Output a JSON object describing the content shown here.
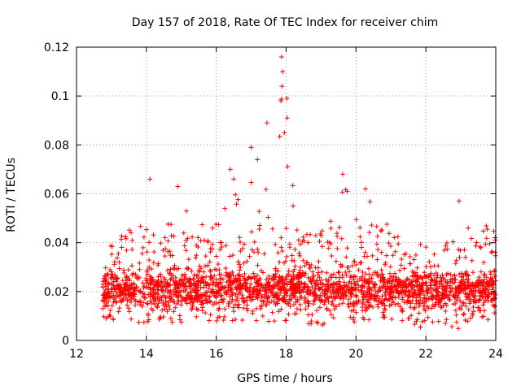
{
  "chart_data": {
    "type": "scatter",
    "title": "Day 157 of 2018, Rate Of TEC Index for receiver chim",
    "xlabel": "GPS time / hours",
    "ylabel": "ROTI / TECUs",
    "xlim": [
      12,
      24
    ],
    "ylim": [
      0,
      0.12
    ],
    "xticks": [
      12,
      14,
      16,
      18,
      20,
      22,
      24
    ],
    "yticks": [
      0,
      0.02,
      0.04,
      0.06,
      0.08,
      0.1,
      0.12
    ],
    "xtick_labels": [
      "12",
      "14",
      "16",
      "18",
      "20",
      "22",
      "24"
    ],
    "ytick_labels": [
      "0",
      "0.02",
      "0.04",
      "0.06",
      "0.08",
      "0.1",
      "0.12"
    ],
    "grid": true,
    "marker": "+",
    "color": "#ff0000",
    "data_range": {
      "x_start": 12.75,
      "x_end": 24.0
    },
    "envelope": {
      "x": [
        12.75,
        13.0,
        13.5,
        13.9,
        14.1,
        14.5,
        14.9,
        15.3,
        15.7,
        16.1,
        16.4,
        16.7,
        17.0,
        17.3,
        17.6,
        17.85,
        18.0,
        18.3,
        18.6,
        19.0,
        19.4,
        19.6,
        19.8,
        20.0,
        20.3,
        20.6,
        21.0,
        21.5,
        22.0,
        22.3,
        22.6,
        22.9,
        23.0,
        23.3,
        23.6,
        24.0
      ],
      "low": [
        0.007,
        0.007,
        0.007,
        0.007,
        0.005,
        0.008,
        0.007,
        0.007,
        0.008,
        0.008,
        0.008,
        0.008,
        0.008,
        0.008,
        0.007,
        0.008,
        0.008,
        0.008,
        0.007,
        0.005,
        0.008,
        0.008,
        0.008,
        0.007,
        0.008,
        0.007,
        0.008,
        0.008,
        0.004,
        0.007,
        0.007,
        0.004,
        0.007,
        0.007,
        0.007,
        0.007
      ],
      "high": [
        0.032,
        0.04,
        0.045,
        0.055,
        0.066,
        0.05,
        0.063,
        0.052,
        0.05,
        0.057,
        0.07,
        0.068,
        0.079,
        0.074,
        0.068,
        0.116,
        0.099,
        0.06,
        0.052,
        0.05,
        0.055,
        0.068,
        0.06,
        0.05,
        0.062,
        0.058,
        0.045,
        0.04,
        0.04,
        0.042,
        0.046,
        0.045,
        0.057,
        0.048,
        0.05,
        0.046
      ]
    },
    "peaks": [
      {
        "x": 17.87,
        "y": 0.116
      },
      {
        "x": 17.9,
        "y": 0.11
      },
      {
        "x": 17.88,
        "y": 0.104
      },
      {
        "x": 18.02,
        "y": 0.099
      },
      {
        "x": 17.85,
        "y": 0.098
      },
      {
        "x": 18.03,
        "y": 0.091
      },
      {
        "x": 17.45,
        "y": 0.089
      },
      {
        "x": 17.95,
        "y": 0.085
      },
      {
        "x": 17.0,
        "y": 0.079
      },
      {
        "x": 17.18,
        "y": 0.074
      },
      {
        "x": 16.4,
        "y": 0.07
      },
      {
        "x": 19.62,
        "y": 0.068
      },
      {
        "x": 14.1,
        "y": 0.066
      },
      {
        "x": 14.9,
        "y": 0.063
      },
      {
        "x": 20.27,
        "y": 0.062
      },
      {
        "x": 19.75,
        "y": 0.061
      },
      {
        "x": 22.95,
        "y": 0.057
      },
      {
        "x": 18.2,
        "y": 0.055
      }
    ],
    "density_note": "dense cluster between 0.01 and 0.03"
  }
}
